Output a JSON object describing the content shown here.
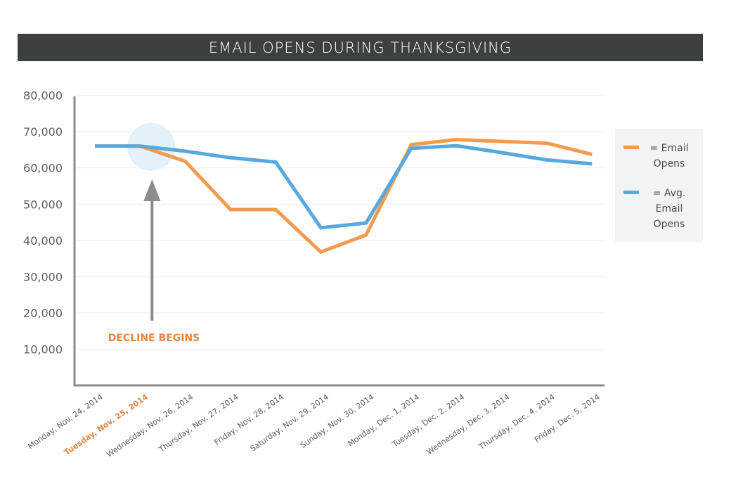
{
  "header": {
    "title": "EMAIL OPENS DURING THANKSGIVING"
  },
  "legend": {
    "items": [
      {
        "label": "= Email Opens",
        "color": "#f39a4e"
      },
      {
        "label": "= Avg. Email Opens",
        "color": "#56a9dd"
      }
    ]
  },
  "annotation": {
    "text": "DECLINE BEGINS",
    "color": "#e8843e"
  },
  "colors": {
    "axis": "#8a8c8e",
    "grid": "#eeeeee",
    "tick_text": "#5a5d5f",
    "highlight_circle": "#e4f0fa",
    "arrow": "#8a8c8e",
    "highlight_label": "#e8843e"
  },
  "chart_data": {
    "type": "line",
    "title": "EMAIL OPENS DURING THANKSGIVING",
    "xlabel": "",
    "ylabel": "",
    "ylim": [
      0,
      80000
    ],
    "yticks": [
      10000,
      20000,
      30000,
      40000,
      50000,
      60000,
      70000,
      80000
    ],
    "ytick_labels": [
      "10,000",
      "20,000",
      "30,000",
      "40,000",
      "50,000",
      "60,000",
      "70,000",
      "80,000"
    ],
    "grid": true,
    "legend_position": "right",
    "highlighted_category": "Tuesday, Nov. 25, 2014",
    "categories": [
      "Monday, Nov. 24, 2014",
      "Tuesday, Nov. 25, 2014",
      "Wednesday, Nov. 26, 2014",
      "Thursday, Nov. 27, 2014",
      "Friday, Nov. 28, 2014",
      "Saturday, Nov. 29, 2014",
      "Sunday, Nov. 30, 2014",
      "Monday, Dec. 1, 2014",
      "Tuesday, Dec. 2, 2014",
      "Wednesday, Dec. 3, 2014",
      "Thursday, Dec. 4, 2014",
      "Friday, Dec. 5, 2014"
    ],
    "series": [
      {
        "name": "Email Opens",
        "color": "#f39a4e",
        "values": [
          66000,
          66000,
          61800,
          48500,
          48500,
          36800,
          41500,
          66400,
          67800,
          67300,
          66800,
          63700
        ]
      },
      {
        "name": "Avg. Email Opens",
        "color": "#56a9dd",
        "values": [
          66000,
          66000,
          64600,
          62800,
          61600,
          43500,
          44800,
          65400,
          66100,
          64200,
          62200,
          61100
        ]
      }
    ]
  }
}
